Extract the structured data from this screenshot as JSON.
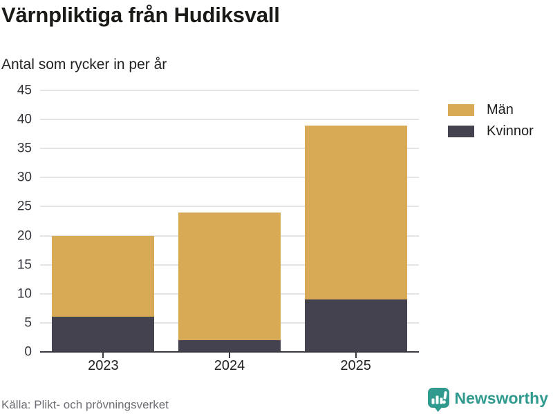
{
  "header": {
    "title": "Värnpliktiga från Hudiksvall",
    "subtitle": "Antal som rycker in per år"
  },
  "chart_data": {
    "type": "bar",
    "stacked": true,
    "title": "Värnpliktiga från Hudiksvall",
    "subtitle": "Antal som rycker in per år",
    "categories": [
      "2023",
      "2024",
      "2025"
    ],
    "series": [
      {
        "name": "Män",
        "color": "#d8aa56",
        "values": [
          14,
          22,
          30
        ]
      },
      {
        "name": "Kvinnor",
        "color": "#44424f",
        "values": [
          6,
          2,
          9
        ]
      }
    ],
    "stack_totals": [
      20,
      24,
      39
    ],
    "ylim": [
      0,
      45
    ],
    "yticks": [
      0,
      5,
      10,
      15,
      20,
      25,
      30,
      35,
      40,
      45
    ],
    "grid": true,
    "legend_position": "top-right"
  },
  "footer": {
    "source": "Källa: Plikt- och prövningsverket",
    "brand": "Newsworthy"
  },
  "colors": {
    "men": "#d8aa56",
    "women": "#44424f",
    "brand_teal": "#2f9a8d",
    "gridline": "#e4e4e4",
    "axis": "#3b3a43",
    "source_text": "#6e6e76"
  }
}
